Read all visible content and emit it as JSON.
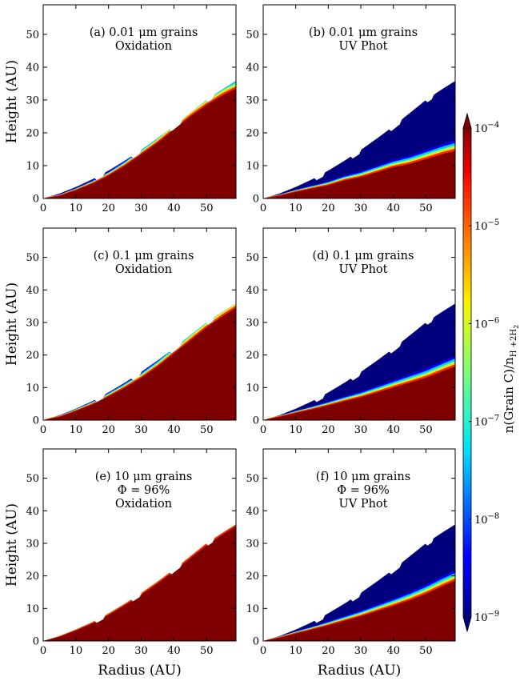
{
  "chart_data": [
    {
      "type": "heatmap",
      "panel": "a",
      "title_lines": [
        "(a) 0.01 μm grains",
        "Oxidation"
      ],
      "xlim": [
        0,
        59
      ],
      "ylim": [
        0,
        59
      ],
      "xticks": [
        0,
        10,
        20,
        30,
        40,
        50
      ],
      "yticks": [
        0,
        10,
        20,
        30,
        40,
        50
      ],
      "xlabel": "",
      "ylabel": "Height (AU)",
      "disk_surface": {
        "radius": [
          0,
          5,
          10,
          15,
          20,
          25,
          30,
          35,
          40,
          45,
          50,
          55,
          59
        ],
        "height": [
          0,
          1.5,
          3.5,
          5.8,
          8.5,
          11.5,
          14.8,
          18.3,
          22,
          26,
          30,
          33.3,
          35.8
        ]
      },
      "transition_height": {
        "radius": [
          0,
          5,
          10,
          15,
          20,
          25,
          30,
          35,
          40,
          45,
          50,
          55,
          59
        ],
        "height": [
          0,
          0.8,
          2.5,
          4.5,
          7,
          10,
          13.5,
          17,
          21,
          25,
          28.5,
          31.5,
          33.5
        ]
      }
    },
    {
      "type": "heatmap",
      "panel": "b",
      "title_lines": [
        "(b) 0.01 μm grains",
        "UV Phot"
      ],
      "xlim": [
        0,
        59
      ],
      "ylim": [
        0,
        59
      ],
      "xticks": [
        0,
        10,
        20,
        30,
        40,
        50
      ],
      "yticks": [
        0,
        10,
        20,
        30,
        40,
        50
      ],
      "xlabel": "",
      "ylabel": "",
      "disk_surface": {
        "radius": [
          0,
          5,
          10,
          15,
          20,
          25,
          30,
          35,
          40,
          45,
          50,
          55,
          59
        ],
        "height": [
          0,
          1.5,
          3.5,
          5.8,
          8.5,
          11.5,
          14.8,
          18.3,
          22,
          26,
          30,
          33.3,
          35.8
        ]
      },
      "transition_height": {
        "radius": [
          0,
          5,
          10,
          15,
          20,
          25,
          30,
          35,
          40,
          45,
          50,
          55,
          59
        ],
        "height": [
          0,
          0.8,
          2,
          3,
          4,
          5.5,
          6.5,
          8,
          9.5,
          10.5,
          12,
          13.5,
          14.5
        ]
      }
    },
    {
      "type": "heatmap",
      "panel": "c",
      "title_lines": [
        "(c) 0.1 μm grains",
        "Oxidation"
      ],
      "xlim": [
        0,
        59
      ],
      "ylim": [
        0,
        59
      ],
      "xticks": [
        0,
        10,
        20,
        30,
        40,
        50
      ],
      "yticks": [
        0,
        10,
        20,
        30,
        40,
        50
      ],
      "xlabel": "",
      "ylabel": "Height (AU)",
      "disk_surface": {
        "radius": [
          0,
          5,
          10,
          15,
          20,
          25,
          30,
          35,
          40,
          45,
          50,
          55,
          59
        ],
        "height": [
          0,
          1.5,
          3.5,
          5.8,
          8.5,
          11.5,
          14.8,
          18.3,
          22,
          26,
          30,
          33.3,
          35.8
        ]
      },
      "transition_height": {
        "radius": [
          0,
          5,
          10,
          15,
          20,
          25,
          30,
          35,
          40,
          45,
          50,
          55,
          59
        ],
        "height": [
          0,
          1,
          2.8,
          4.8,
          7.3,
          10,
          13,
          16.5,
          20.5,
          24.5,
          28.5,
          32,
          34.5
        ]
      }
    },
    {
      "type": "heatmap",
      "panel": "d",
      "title_lines": [
        "(d) 0.1 μm grains",
        "UV Phot"
      ],
      "xlim": [
        0,
        59
      ],
      "ylim": [
        0,
        59
      ],
      "xticks": [
        0,
        10,
        20,
        30,
        40,
        50
      ],
      "yticks": [
        0,
        10,
        20,
        30,
        40,
        50
      ],
      "xlabel": "",
      "ylabel": "",
      "disk_surface": {
        "radius": [
          0,
          5,
          10,
          15,
          20,
          25,
          30,
          35,
          40,
          45,
          50,
          55,
          59
        ],
        "height": [
          0,
          1.5,
          3.5,
          5.8,
          8.5,
          11.5,
          14.8,
          18.3,
          22,
          26,
          30,
          33.3,
          35.8
        ]
      },
      "transition_height": {
        "radius": [
          0,
          5,
          10,
          15,
          20,
          25,
          30,
          35,
          40,
          45,
          50,
          55,
          59
        ],
        "height": [
          0,
          1,
          2.2,
          3.3,
          4.5,
          5.8,
          7,
          8.5,
          10,
          11.5,
          13,
          15,
          16.5
        ]
      }
    },
    {
      "type": "heatmap",
      "panel": "e",
      "title_lines": [
        "(e) 10 μm grains",
        "Φ = 96%",
        "Oxidation"
      ],
      "xlim": [
        0,
        59
      ],
      "ylim": [
        0,
        59
      ],
      "xticks": [
        0,
        10,
        20,
        30,
        40,
        50
      ],
      "yticks": [
        0,
        10,
        20,
        30,
        40,
        50
      ],
      "xlabel": "Radius (AU)",
      "ylabel": "Height (AU)",
      "disk_surface": {
        "radius": [
          0,
          5,
          10,
          15,
          20,
          25,
          30,
          35,
          40,
          45,
          50,
          55,
          59
        ],
        "height": [
          0,
          1.5,
          3.5,
          5.8,
          8.5,
          11.5,
          14.8,
          18.3,
          22,
          26,
          30,
          33.3,
          35.8
        ]
      },
      "transition_height": {
        "radius": [
          0,
          5,
          10,
          15,
          20,
          25,
          30,
          35,
          40,
          45,
          50,
          55,
          59
        ],
        "height": [
          0,
          1.3,
          3.2,
          5.4,
          8,
          11,
          14.2,
          17.7,
          21.4,
          25.4,
          29.4,
          32.8,
          35.3
        ]
      }
    },
    {
      "type": "heatmap",
      "panel": "f",
      "title_lines": [
        "(f) 10 μm grains",
        "Φ = 96%",
        "UV Phot"
      ],
      "xlim": [
        0,
        59
      ],
      "ylim": [
        0,
        59
      ],
      "xticks": [
        0,
        10,
        20,
        30,
        40,
        50
      ],
      "yticks": [
        0,
        10,
        20,
        30,
        40,
        50
      ],
      "xlabel": "Radius (AU)",
      "ylabel": "",
      "disk_surface": {
        "radius": [
          0,
          5,
          10,
          15,
          20,
          25,
          30,
          35,
          40,
          45,
          50,
          55,
          59
        ],
        "height": [
          0,
          1.5,
          3.5,
          5.8,
          8.5,
          11.5,
          14.8,
          18.3,
          22,
          26,
          30,
          33.3,
          35.8
        ]
      },
      "transition_height": {
        "radius": [
          0,
          5,
          10,
          15,
          20,
          25,
          30,
          35,
          40,
          45,
          50,
          55,
          59
        ],
        "height": [
          0,
          1,
          2.3,
          3.5,
          4.8,
          6.2,
          7.6,
          9.2,
          10.8,
          12.5,
          14.5,
          16.8,
          18.5
        ]
      }
    }
  ],
  "colorbar": {
    "label_main": "n(Grain C)/n",
    "label_sub": "H +2H",
    "label_subsub": "2",
    "ticks": [
      {
        "exp": -4,
        "base": "10",
        "sup": "−4"
      },
      {
        "exp": -5,
        "base": "10",
        "sup": "−5"
      },
      {
        "exp": -6,
        "base": "10",
        "sup": "−6"
      },
      {
        "exp": -7,
        "base": "10",
        "sup": "−7"
      },
      {
        "exp": -8,
        "base": "10",
        "sup": "−8"
      },
      {
        "exp": -9,
        "base": "10",
        "sup": "−9"
      }
    ],
    "range_log10": [
      -9,
      -4
    ],
    "extend": "both",
    "colormap": "jet"
  },
  "colors": {
    "low": "#00007f",
    "high": "#7f0000",
    "background": "#ffffff"
  }
}
